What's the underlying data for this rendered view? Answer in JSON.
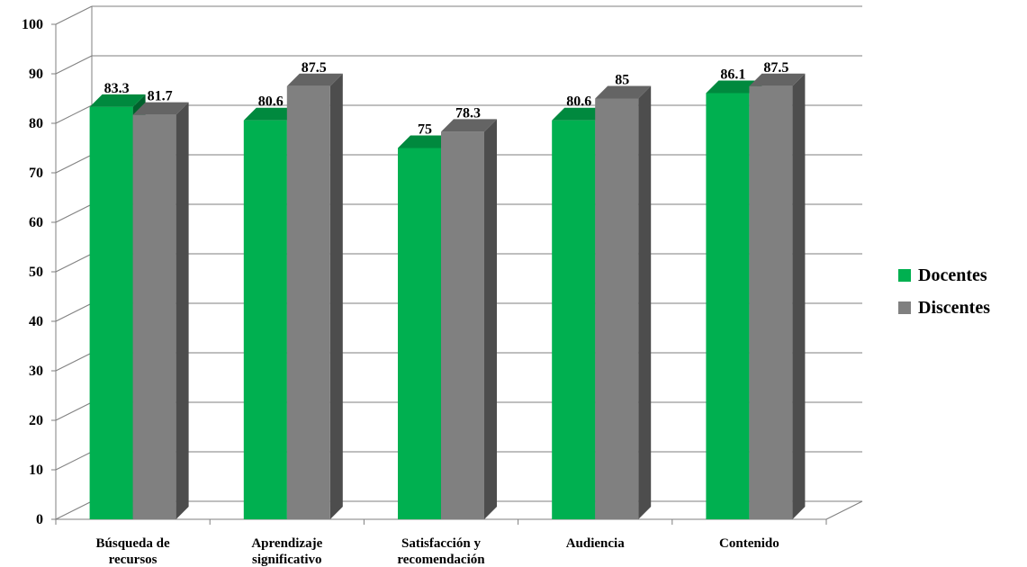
{
  "chart_data": {
    "type": "bar",
    "title": "",
    "xlabel": "",
    "ylabel": "",
    "ylim": [
      0,
      100
    ],
    "yticks": [
      0,
      10,
      20,
      30,
      40,
      50,
      60,
      70,
      80,
      90,
      100
    ],
    "categories": [
      [
        "Búsqueda de",
        "recursos"
      ],
      [
        "Aprendizaje",
        "significativo"
      ],
      [
        "Satisfacción y",
        "recomendación"
      ],
      [
        "Audiencia"
      ],
      [
        "Contenido"
      ]
    ],
    "series": [
      {
        "name": "Docentes",
        "color": "#00b050",
        "values": [
          83.3,
          80.6,
          75,
          80.6,
          86.1
        ],
        "labels": [
          "83.3",
          "80.6",
          "75",
          "80.6",
          "86.1"
        ]
      },
      {
        "name": "Discentes",
        "color": "#808080",
        "values": [
          81.7,
          87.5,
          78.3,
          85,
          87.5
        ],
        "labels": [
          "81.7",
          "87.5",
          "78.3",
          "85",
          "87.5"
        ]
      }
    ],
    "grid": true,
    "three_d": true,
    "legend_position": "right"
  },
  "legend": {
    "items": [
      {
        "label": "Docentes",
        "color": "#00b050"
      },
      {
        "label": "Discentes",
        "color": "#808080"
      }
    ]
  }
}
